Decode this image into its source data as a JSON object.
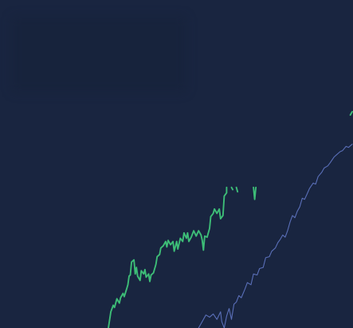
{
  "colors": {
    "background": "#192540",
    "primary_series": "#3dbd77",
    "secondary_series": "#5a6fb8"
  },
  "chart_data": {
    "type": "line",
    "title": "",
    "xlabel": "",
    "ylabel": "",
    "grid": false,
    "legend": "none",
    "xlim": [
      0,
      100
    ],
    "ylim": [
      0,
      100
    ],
    "series": [
      {
        "color": "#3dbd77",
        "points": [
          [
            0,
            0
          ],
          [
            1,
            7.5
          ],
          [
            2,
            10.5
          ],
          [
            2.5,
            9.5
          ],
          [
            3.5,
            13.5
          ],
          [
            4.5,
            11.5
          ],
          [
            5,
            14
          ],
          [
            6,
            16
          ],
          [
            6.5,
            14.5
          ],
          [
            7.5,
            18
          ],
          [
            8,
            20
          ],
          [
            8.5,
            24
          ],
          [
            9,
            24.5
          ],
          [
            9.5,
            30.5
          ],
          [
            10.5,
            31.5
          ],
          [
            11,
            25
          ],
          [
            11.5,
            28
          ],
          [
            12,
            24
          ],
          [
            13,
            22
          ],
          [
            13.5,
            26.5
          ],
          [
            14.5,
            25
          ],
          [
            15,
            27
          ],
          [
            15.5,
            23.5
          ],
          [
            16.5,
            25
          ],
          [
            17,
            21.5
          ],
          [
            17.5,
            24.5
          ],
          [
            18.5,
            25.5
          ],
          [
            19.5,
            29.5
          ],
          [
            20,
            33
          ],
          [
            21,
            34
          ],
          [
            21.5,
            37
          ],
          [
            22.5,
            38
          ],
          [
            23.5,
            40
          ],
          [
            24,
            37.5
          ],
          [
            24.5,
            40.5
          ],
          [
            25.5,
            38.5
          ],
          [
            26.5,
            40
          ],
          [
            27,
            35.5
          ],
          [
            28,
            40
          ],
          [
            28.5,
            36.5
          ],
          [
            29.5,
            41.5
          ],
          [
            30.5,
            40
          ],
          [
            31,
            44
          ],
          [
            32,
            41.5
          ],
          [
            32.5,
            44
          ],
          [
            33,
            40
          ],
          [
            34,
            42
          ],
          [
            35,
            45
          ],
          [
            36,
            42.5
          ],
          [
            37,
            45
          ],
          [
            38,
            43
          ],
          [
            38.5,
            40.5
          ],
          [
            39,
            36
          ],
          [
            39.5,
            42.5
          ],
          [
            40.5,
            42
          ],
          [
            41.5,
            46
          ],
          [
            42,
            51.5
          ],
          [
            43,
            53
          ],
          [
            43.5,
            55
          ],
          [
            44.5,
            53
          ],
          [
            45.5,
            55
          ],
          [
            46,
            50.5
          ],
          [
            47,
            52
          ],
          [
            47.5,
            61
          ],
          [
            48.5,
            62.5
          ],
          [
            48.5,
            65
          ]
        ]
      },
      {
        "color": "#3dbd77",
        "points": [
          [
            50.5,
            65
          ],
          [
            51,
            64
          ]
        ]
      },
      {
        "color": "#3dbd77",
        "points": [
          [
            52.5,
            65
          ],
          [
            53,
            63
          ]
        ]
      },
      {
        "color": "#3dbd77",
        "points": [
          [
            59.5,
            65
          ],
          [
            60,
            59.5
          ],
          [
            60.5,
            65
          ]
        ]
      },
      {
        "color": "#5a6fb8",
        "points": [
          [
            37,
            0
          ],
          [
            38.5,
            3
          ],
          [
            40,
            6
          ],
          [
            41.5,
            5
          ],
          [
            43,
            6.5
          ],
          [
            44.5,
            4
          ],
          [
            46,
            7.5
          ],
          [
            46.5,
            3
          ],
          [
            47.5,
            0
          ],
          [
            48.5,
            5.5
          ],
          [
            49.5,
            9
          ],
          [
            50.5,
            4
          ],
          [
            51.5,
            11
          ],
          [
            52.5,
            12
          ],
          [
            53.5,
            15
          ],
          [
            54.5,
            14
          ],
          [
            56,
            18
          ],
          [
            57,
            21
          ],
          [
            58.5,
            20
          ],
          [
            59.5,
            25
          ],
          [
            61,
            24.5
          ],
          [
            62,
            27.5
          ],
          [
            63.5,
            28
          ],
          [
            64.5,
            32.5
          ],
          [
            66,
            33
          ],
          [
            67,
            35.5
          ],
          [
            68.5,
            37
          ],
          [
            69.5,
            39.5
          ],
          [
            70.5,
            41
          ],
          [
            71.5,
            43
          ],
          [
            72.5,
            42
          ],
          [
            73.5,
            45
          ],
          [
            74.5,
            49
          ],
          [
            75.5,
            52
          ],
          [
            76.5,
            51
          ],
          [
            77.5,
            54
          ],
          [
            78.5,
            56
          ],
          [
            79.5,
            60
          ],
          [
            80.5,
            59.5
          ],
          [
            81.5,
            62
          ],
          [
            82.5,
            64.5
          ],
          [
            84,
            67
          ],
          [
            85,
            66.5
          ],
          [
            86,
            70
          ],
          [
            87.5,
            72
          ],
          [
            88.5,
            74
          ],
          [
            90,
            75
          ],
          [
            91,
            76.5
          ],
          [
            92.5,
            79
          ],
          [
            93.5,
            80
          ],
          [
            95,
            81.5
          ],
          [
            96,
            82
          ],
          [
            97.5,
            84
          ],
          [
            98.5,
            83.5
          ],
          [
            100,
            85
          ]
        ]
      },
      {
        "color": "#3dbd77",
        "points": [
          [
            99.2,
            98.5
          ],
          [
            100,
            100
          ]
        ]
      }
    ]
  }
}
